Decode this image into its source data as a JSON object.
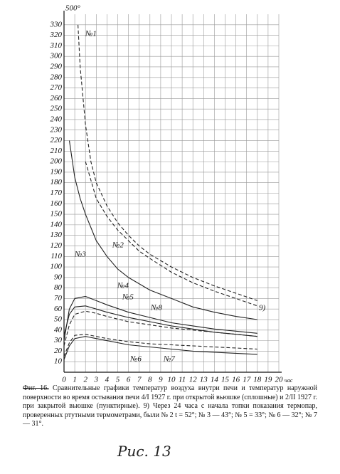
{
  "chart_data": {
    "type": "line",
    "x_label": "час",
    "xlim": [
      0,
      20
    ],
    "ylim": [
      0,
      340
    ],
    "xticks": [
      0,
      1,
      2,
      3,
      4,
      5,
      6,
      7,
      8,
      9,
      10,
      11,
      12,
      13,
      14,
      15,
      16,
      17,
      18,
      19,
      20
    ],
    "yticks": [
      10,
      20,
      30,
      40,
      50,
      60,
      70,
      80,
      90,
      100,
      110,
      120,
      130,
      140,
      150,
      160,
      170,
      180,
      190,
      200,
      210,
      220,
      230,
      240,
      250,
      260,
      270,
      280,
      290,
      300,
      310,
      320,
      330
    ],
    "grid": true,
    "series": [
      {
        "name": "№1",
        "color": "#222222",
        "dashed": true,
        "x": [
          1.3,
          1.5,
          2,
          2.5,
          3,
          4,
          5,
          6,
          7,
          8,
          10,
          12,
          14,
          16,
          18
        ],
        "values": [
          330,
          290,
          235,
          200,
          180,
          158,
          142,
          130,
          120,
          112,
          100,
          90,
          82,
          75,
          68
        ]
      },
      {
        "name": "№2",
        "color": "#222222",
        "dashed": true,
        "x": [
          2,
          3,
          4,
          5,
          6,
          7,
          8,
          10,
          12,
          14,
          16,
          18
        ],
        "values": [
          200,
          165,
          148,
          135,
          125,
          115,
          108,
          95,
          85,
          77,
          70,
          63
        ]
      },
      {
        "name": "№3",
        "color": "#222222",
        "dashed": false,
        "x": [
          0.5,
          1,
          1.5,
          2,
          3,
          4,
          5,
          6,
          8,
          10,
          12,
          14,
          16,
          18
        ],
        "values": [
          220,
          185,
          165,
          150,
          125,
          110,
          98,
          90,
          78,
          70,
          62,
          57,
          53,
          50
        ]
      },
      {
        "name": "№4",
        "color": "#222222",
        "dashed": false,
        "x": [
          0,
          0.5,
          1,
          2,
          3,
          4,
          6,
          8,
          10,
          12,
          14,
          16,
          18
        ],
        "values": [
          30,
          60,
          70,
          72,
          68,
          64,
          57,
          52,
          47,
          44,
          41,
          39,
          37
        ]
      },
      {
        "name": "№5",
        "color": "#222222",
        "dashed": true,
        "x": [
          0,
          0.5,
          1,
          2,
          3,
          4,
          6,
          8,
          10,
          12,
          14,
          16,
          18
        ],
        "values": [
          25,
          45,
          55,
          58,
          56,
          53,
          48,
          45,
          42,
          40,
          38,
          36,
          34
        ]
      },
      {
        "name": "№6",
        "color": "#222222",
        "dashed": true,
        "x": [
          0,
          0.5,
          1,
          2,
          3,
          4,
          6,
          8,
          10,
          12,
          14,
          16,
          18
        ],
        "values": [
          15,
          28,
          35,
          36,
          34,
          32,
          29,
          27,
          26,
          25,
          24,
          23,
          22
        ]
      },
      {
        "name": "№7",
        "color": "#222222",
        "dashed": false,
        "x": [
          0,
          0.5,
          1,
          2,
          3,
          4,
          6,
          8,
          10,
          12,
          14,
          16,
          18
        ],
        "values": [
          12,
          25,
          32,
          34,
          32,
          30,
          26,
          24,
          22,
          20,
          19,
          18,
          17
        ]
      },
      {
        "name": "№8",
        "color": "#222222",
        "dashed": false,
        "x": [
          0,
          0.5,
          1,
          2,
          3,
          4,
          6,
          8,
          10,
          12,
          14,
          16,
          18
        ],
        "values": [
          35,
          55,
          62,
          63,
          60,
          57,
          52,
          48,
          44,
          41,
          38,
          36,
          34
        ]
      }
    ],
    "annotations": [
      "500°",
      "9)"
    ],
    "caption_number": "Фиг. 16.",
    "caption": "Сравнительные графики температур воздуха внутри печи и температур наружной поверхности во время остывания печи 4/I 1927 г. при открытой вьюшке (сплошные) и 2/II 1927 г. при закрытой вьюшке (пунктирные). 9) Через 24 часа с начала топки показания термопар, проверенных ртутными термометрами, были № 2 t = 52°; № 3 — 43°; № 5 = 33°; № 6 — 32°; № 7 — 31°.",
    "figure_label": "Рис. 13"
  }
}
